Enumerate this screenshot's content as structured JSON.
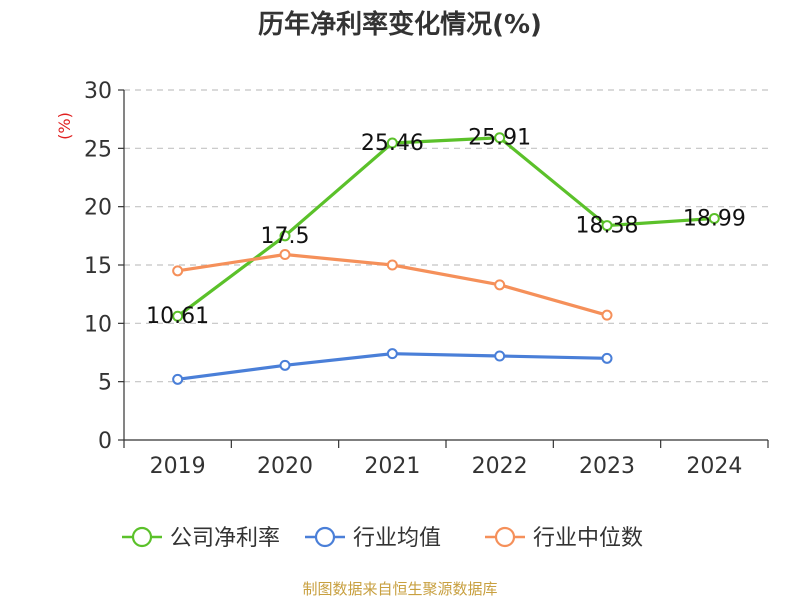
{
  "chart_data": {
    "type": "line",
    "title": "历年净利率变化情况(%)",
    "y_unit": "(%)",
    "categories": [
      "2019",
      "2020",
      "2021",
      "2022",
      "2023",
      "2024"
    ],
    "ylim": [
      0,
      30
    ],
    "yticks": [
      0,
      5,
      10,
      15,
      20,
      25,
      30
    ],
    "grid": true,
    "legend_position": "bottom",
    "series": [
      {
        "name": "公司净利率",
        "color": "#5bc12a",
        "values": [
          10.61,
          17.5,
          25.46,
          25.91,
          18.38,
          18.99
        ],
        "labels": [
          "10.61",
          "17.5",
          "25.46",
          "25.91",
          "18.38",
          "18.99"
        ]
      },
      {
        "name": "行业均值",
        "color": "#4a7fd8",
        "values": [
          5.2,
          6.4,
          7.4,
          7.2,
          7.0,
          null
        ]
      },
      {
        "name": "行业中位数",
        "color": "#f5905a",
        "values": [
          14.5,
          15.9,
          15.0,
          13.3,
          10.7,
          null
        ]
      }
    ],
    "source": "制图数据来自恒生聚源数据库"
  }
}
